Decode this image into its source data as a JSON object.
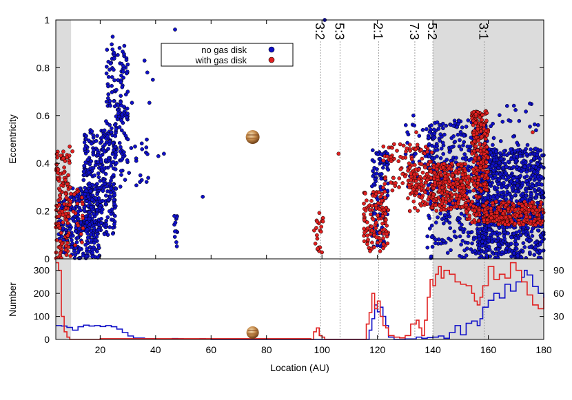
{
  "chart_data": [
    {
      "type": "scatter",
      "ylabel": "Eccentricity",
      "xlim": [
        4,
        180
      ],
      "ylim": [
        0,
        1
      ],
      "yticks": [
        "0",
        "0.2",
        "0.4",
        "0.6",
        "0.8",
        "1"
      ],
      "ytick_values": [
        0,
        0.2,
        0.4,
        0.6,
        0.8,
        1.0
      ],
      "shaded_regions": [
        [
          4,
          9.5
        ],
        [
          140,
          180
        ]
      ],
      "resonances": [
        {
          "label": "3:2",
          "x": 99.5
        },
        {
          "label": "5:3",
          "x": 106.5
        },
        {
          "label": "2:1",
          "x": 120.5
        },
        {
          "label": "7:3",
          "x": 133.5
        },
        {
          "label": "5:2",
          "x": 140
        },
        {
          "label": "3:1",
          "x": 158.5
        }
      ],
      "planet_marker": {
        "x": 75,
        "y": 0.51
      },
      "legend": {
        "placement": "top-center",
        "entries": [
          {
            "label": "no gas disk",
            "color": "#1010c8"
          },
          {
            "label": "with gas disk",
            "color": "#e02020"
          }
        ]
      },
      "series": [
        {
          "name": "no gas disk",
          "color": "#1010c8",
          "clusters": [
            {
              "xrange": [
                5,
                9
              ],
              "yrange": [
                0.02,
                0.25
              ],
              "n": 60
            },
            {
              "xrange": [
                9,
                20
              ],
              "yrange": [
                0.0,
                0.3
              ],
              "n": 260
            },
            {
              "xrange": [
                14,
                26
              ],
              "yrange": [
                0.1,
                0.55
              ],
              "n": 300
            },
            {
              "xrange": [
                22,
                30
              ],
              "yrange": [
                0.4,
                0.9
              ],
              "n": 140
            },
            {
              "xrange": [
                26,
                38
              ],
              "yrange": [
                0.3,
                0.7
              ],
              "n": 30
            },
            {
              "xrange": [
                46.5,
                48
              ],
              "yrange": [
                0.05,
                0.18
              ],
              "n": 12
            },
            {
              "xrange": [
                118,
                124
              ],
              "yrange": [
                0.05,
                0.46
              ],
              "n": 110
            },
            {
              "xrange": [
                130,
                140
              ],
              "yrange": [
                0.25,
                0.6
              ],
              "n": 40
            },
            {
              "xrange": [
                138,
                160
              ],
              "yrange": [
                0.0,
                0.58
              ],
              "n": 420
            },
            {
              "xrange": [
                156,
                180
              ],
              "yrange": [
                0.0,
                0.46
              ],
              "n": 900
            },
            {
              "xrange": [
                160,
                178
              ],
              "yrange": [
                0.46,
                0.65
              ],
              "n": 25
            }
          ],
          "points": [
            [
              24.5,
              0.93
            ],
            [
              47,
              0.96
            ],
            [
              36,
              0.83
            ],
            [
              37,
              0.78
            ],
            [
              39,
              0.75
            ],
            [
              57,
              0.26
            ],
            [
              35,
              0.33
            ],
            [
              33,
              0.41
            ],
            [
              41,
              0.43
            ],
            [
              43,
              0.44
            ],
            [
              34.5,
              0.35
            ],
            [
              101,
              1.0
            ],
            [
              133,
              0.6
            ],
            [
              175,
              0.65
            ]
          ]
        },
        {
          "name": "with gas disk",
          "color": "#e02020",
          "clusters": [
            {
              "xrange": [
                4,
                9
              ],
              "yrange": [
                0.0,
                0.45
              ],
              "n": 130
            },
            {
              "xrange": [
                9,
                14
              ],
              "yrange": [
                0.0,
                0.3
              ],
              "n": 25
            },
            {
              "xrange": [
                97,
                100.5
              ],
              "yrange": [
                0.02,
                0.2
              ],
              "n": 22
            },
            {
              "xrange": [
                115,
                124
              ],
              "yrange": [
                0.03,
                0.28
              ],
              "n": 110
            },
            {
              "xrange": [
                122,
                140
              ],
              "yrange": [
                0.28,
                0.48
              ],
              "n": 100
            },
            {
              "xrange": [
                131,
                140
              ],
              "yrange": [
                0.2,
                0.4
              ],
              "n": 70
            },
            {
              "xrange": [
                140,
                152
              ],
              "yrange": [
                0.2,
                0.4
              ],
              "n": 220
            },
            {
              "xrange": [
                152,
                157
              ],
              "yrange": [
                0.15,
                0.35
              ],
              "n": 60
            },
            {
              "xrange": [
                154,
                160
              ],
              "yrange": [
                0.28,
                0.62
              ],
              "n": 200
            },
            {
              "xrange": [
                158,
                180
              ],
              "yrange": [
                0.14,
                0.24
              ],
              "n": 240
            }
          ],
          "points": [
            [
              106,
              0.44
            ],
            [
              126,
              0.48
            ],
            [
              134,
              0.53
            ],
            [
              176,
              0.53
            ],
            [
              9,
              0.47
            ],
            [
              10,
              0.45
            ]
          ]
        }
      ]
    },
    {
      "type": "line",
      "xlabel": "Location (AU)",
      "ylabel": "Number",
      "xlim": [
        4,
        180
      ],
      "xticks": [
        "20",
        "40",
        "60",
        "80",
        "100",
        "120",
        "140",
        "160",
        "180"
      ],
      "xtick_values": [
        20,
        40,
        60,
        80,
        100,
        120,
        140,
        160,
        180
      ],
      "ylim_left": [
        0,
        350
      ],
      "yticks_left": [
        "0",
        "100",
        "200",
        "300"
      ],
      "ytick_values_left": [
        0,
        100,
        200,
        300
      ],
      "ylim_right": [
        0,
        105
      ],
      "yticks_right": [
        "30",
        "60",
        "90"
      ],
      "ytick_values_right": [
        30,
        60,
        90
      ],
      "shaded_regions": [
        [
          4,
          9.5
        ],
        [
          140,
          180
        ]
      ],
      "series": [
        {
          "name": "no gas disk",
          "color": "#1010c8",
          "axis": "left",
          "points": [
            [
              4,
              60
            ],
            [
              6,
              58
            ],
            [
              8,
              52
            ],
            [
              10,
              40
            ],
            [
              12,
              55
            ],
            [
              14,
              62
            ],
            [
              16,
              58
            ],
            [
              18,
              60
            ],
            [
              20,
              56
            ],
            [
              22,
              60
            ],
            [
              24,
              55
            ],
            [
              26,
              45
            ],
            [
              28,
              30
            ],
            [
              30,
              15
            ],
            [
              32,
              6
            ],
            [
              36,
              3
            ],
            [
              40,
              2
            ],
            [
              46,
              4
            ],
            [
              48,
              3
            ],
            [
              50,
              2
            ],
            [
              56,
              3
            ],
            [
              58,
              1
            ],
            [
              60,
              0
            ],
            [
              116,
              0
            ],
            [
              117,
              40
            ],
            [
              118,
              90
            ],
            [
              119,
              150
            ],
            [
              120,
              120
            ],
            [
              121,
              140
            ],
            [
              122,
              100
            ],
            [
              123,
              60
            ],
            [
              124,
              10
            ],
            [
              126,
              0
            ],
            [
              130,
              2
            ],
            [
              134,
              10
            ],
            [
              136,
              5
            ],
            [
              138,
              8
            ],
            [
              140,
              10
            ],
            [
              142,
              15
            ],
            [
              144,
              5
            ],
            [
              146,
              30
            ],
            [
              148,
              60
            ],
            [
              150,
              20
            ],
            [
              152,
              70
            ],
            [
              154,
              80
            ],
            [
              156,
              60
            ],
            [
              157,
              90
            ],
            [
              158,
              140
            ],
            [
              160,
              170
            ],
            [
              162,
              200
            ],
            [
              164,
              180
            ],
            [
              166,
              240
            ],
            [
              168,
              210
            ],
            [
              170,
              250
            ],
            [
              172,
              270
            ],
            [
              173,
              300
            ],
            [
              174,
              280
            ],
            [
              176,
              230
            ],
            [
              178,
              200
            ],
            [
              180,
              180
            ]
          ]
        },
        {
          "name": "with gas disk",
          "color": "#e02020",
          "axis": "right",
          "points": [
            [
              4,
              100
            ],
            [
              5,
              90
            ],
            [
              6,
              30
            ],
            [
              7,
              10
            ],
            [
              8,
              3
            ],
            [
              9,
              0
            ],
            [
              20,
              1
            ],
            [
              96,
              0
            ],
            [
              97,
              10
            ],
            [
              98,
              15
            ],
            [
              99,
              5
            ],
            [
              100,
              3
            ],
            [
              101,
              0
            ],
            [
              115,
              0
            ],
            [
              116,
              20
            ],
            [
              117,
              35
            ],
            [
              118,
              60
            ],
            [
              119,
              40
            ],
            [
              120,
              50
            ],
            [
              121,
              30
            ],
            [
              122,
              18
            ],
            [
              123,
              15
            ],
            [
              124,
              5
            ],
            [
              126,
              3
            ],
            [
              128,
              2
            ],
            [
              130,
              5
            ],
            [
              132,
              20
            ],
            [
              134,
              25
            ],
            [
              135,
              15
            ],
            [
              136,
              5
            ],
            [
              137,
              25
            ],
            [
              138,
              55
            ],
            [
              139,
              78
            ],
            [
              140,
              70
            ],
            [
              141,
              85
            ],
            [
              142,
              95
            ],
            [
              143,
              80
            ],
            [
              144,
              90
            ],
            [
              146,
              85
            ],
            [
              148,
              75
            ],
            [
              150,
              72
            ],
            [
              152,
              70
            ],
            [
              154,
              60
            ],
            [
              155,
              50
            ],
            [
              156,
              45
            ],
            [
              157,
              55
            ],
            [
              158,
              70
            ],
            [
              160,
              95
            ],
            [
              162,
              78
            ],
            [
              164,
              85
            ],
            [
              166,
              80
            ],
            [
              168,
              100
            ],
            [
              170,
              90
            ],
            [
              172,
              75
            ],
            [
              174,
              58
            ],
            [
              176,
              45
            ],
            [
              178,
              40
            ],
            [
              180,
              55
            ]
          ]
        }
      ]
    }
  ]
}
